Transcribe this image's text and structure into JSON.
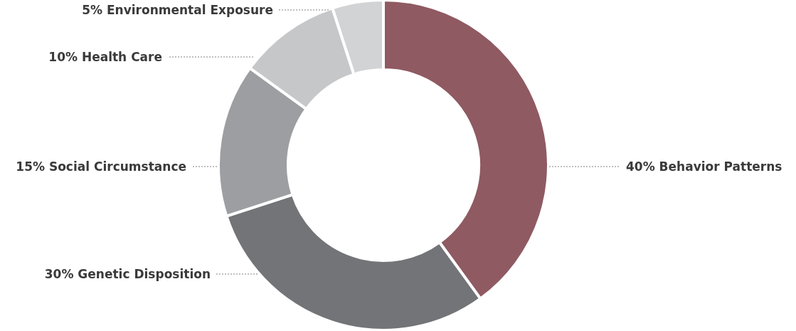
{
  "chart_data": {
    "type": "donut",
    "categories": [
      "Behavior Patterns",
      "Genetic Disposition",
      "Social Circumstance",
      "Health Care",
      "Environmental Exposure"
    ],
    "values": [
      40,
      30,
      15,
      10,
      5
    ],
    "value_labels": [
      "40%",
      "30%",
      "15%",
      "10%",
      "5%"
    ],
    "colors": [
      "#8f5a62",
      "#737478",
      "#9d9ea1",
      "#c6c7c9",
      "#d2d3d5"
    ],
    "legend": false
  }
}
